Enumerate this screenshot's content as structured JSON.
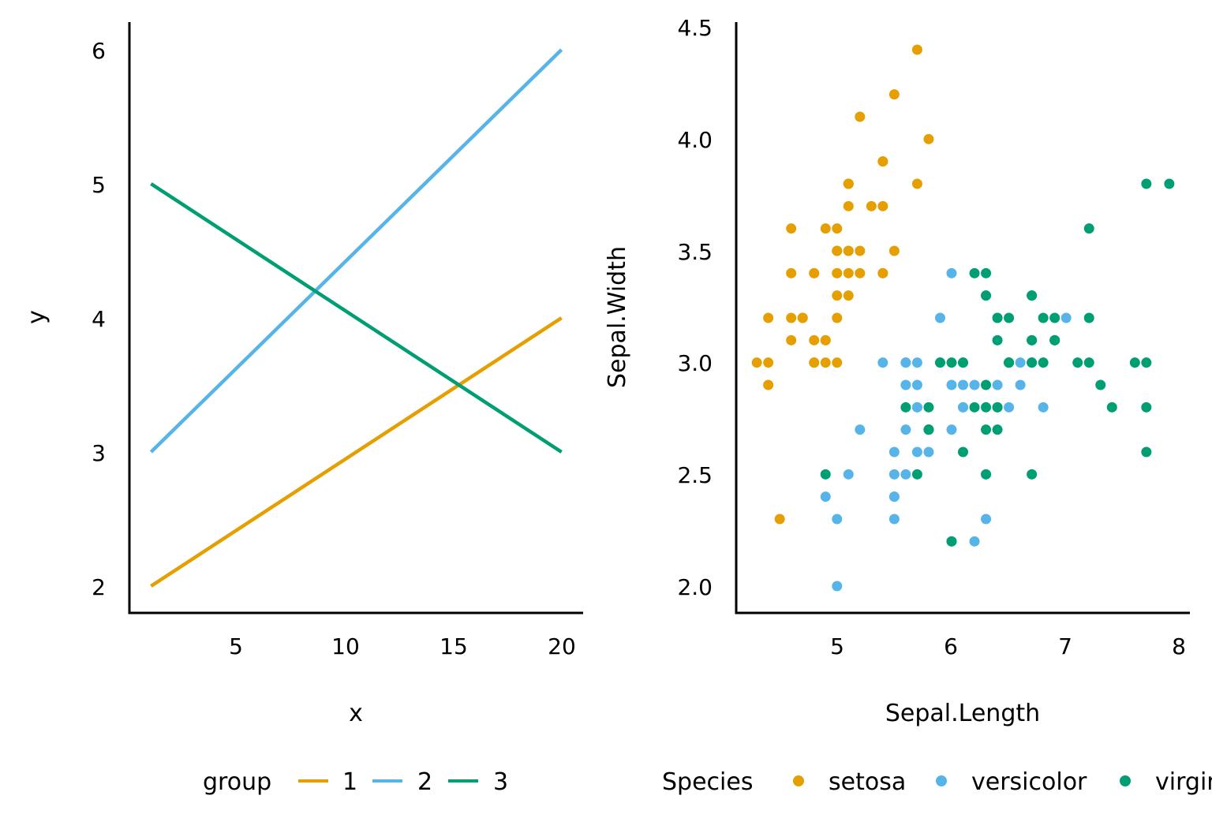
{
  "colors": {
    "g1": "#E69F00",
    "g2": "#56B4E9",
    "g3": "#009E73",
    "axis": "#000000"
  },
  "chart_data": [
    {
      "type": "line",
      "xlabel": "x",
      "ylabel": "y",
      "xlim": [
        0,
        21
      ],
      "ylim": [
        1.8,
        6.2
      ],
      "xticks": [
        "5",
        "10",
        "15",
        "20"
      ],
      "yticks": [
        "2",
        "3",
        "4",
        "5",
        "6"
      ],
      "grid": false,
      "legend_position": "bottom",
      "legend_title": "group",
      "series": [
        {
          "name": "1",
          "color": "#E69F00",
          "x": [
            1,
            20
          ],
          "y": [
            2,
            4
          ]
        },
        {
          "name": "2",
          "color": "#56B4E9",
          "x": [
            1,
            20
          ],
          "y": [
            3,
            6
          ]
        },
        {
          "name": "3",
          "color": "#009E73",
          "x": [
            1,
            20
          ],
          "y": [
            5,
            3
          ]
        }
      ]
    },
    {
      "type": "scatter",
      "xlabel": "Sepal.Length",
      "ylabel": "Sepal.Width",
      "xlim": [
        4.12,
        8.08
      ],
      "ylim": [
        1.88,
        4.52
      ],
      "xticks": [
        "5",
        "6",
        "7",
        "8"
      ],
      "yticks": [
        "2.0",
        "2.5",
        "3.0",
        "3.5",
        "4.0",
        "4.5"
      ],
      "grid": false,
      "legend_position": "bottom",
      "legend_title": "Species",
      "series": [
        {
          "name": "setosa",
          "color": "#E69F00",
          "points": [
            [
              5.1,
              3.5
            ],
            [
              4.9,
              3.0
            ],
            [
              4.7,
              3.2
            ],
            [
              4.6,
              3.1
            ],
            [
              5.0,
              3.6
            ],
            [
              5.4,
              3.9
            ],
            [
              4.6,
              3.4
            ],
            [
              5.0,
              3.4
            ],
            [
              4.4,
              2.9
            ],
            [
              4.9,
              3.1
            ],
            [
              5.4,
              3.7
            ],
            [
              4.8,
              3.4
            ],
            [
              4.8,
              3.0
            ],
            [
              4.3,
              3.0
            ],
            [
              5.8,
              4.0
            ],
            [
              5.7,
              4.4
            ],
            [
              5.4,
              3.9
            ],
            [
              5.1,
              3.5
            ],
            [
              5.7,
              3.8
            ],
            [
              5.1,
              3.8
            ],
            [
              5.4,
              3.4
            ],
            [
              5.1,
              3.7
            ],
            [
              4.6,
              3.6
            ],
            [
              5.1,
              3.3
            ],
            [
              4.8,
              3.4
            ],
            [
              5.0,
              3.0
            ],
            [
              5.0,
              3.4
            ],
            [
              5.2,
              3.5
            ],
            [
              5.2,
              3.4
            ],
            [
              4.7,
              3.2
            ],
            [
              4.8,
              3.1
            ],
            [
              5.4,
              3.4
            ],
            [
              5.2,
              4.1
            ],
            [
              5.5,
              4.2
            ],
            [
              4.9,
              3.1
            ],
            [
              5.0,
              3.2
            ],
            [
              5.5,
              3.5
            ],
            [
              4.9,
              3.6
            ],
            [
              4.4,
              3.0
            ],
            [
              5.1,
              3.4
            ],
            [
              5.0,
              3.5
            ],
            [
              4.5,
              2.3
            ],
            [
              4.4,
              3.2
            ],
            [
              5.0,
              3.5
            ],
            [
              5.1,
              3.8
            ],
            [
              4.8,
              3.0
            ],
            [
              5.1,
              3.8
            ],
            [
              4.6,
              3.2
            ],
            [
              5.3,
              3.7
            ],
            [
              5.0,
              3.3
            ]
          ]
        },
        {
          "name": "versicolor",
          "color": "#56B4E9",
          "points": [
            [
              7.0,
              3.2
            ],
            [
              6.4,
              3.2
            ],
            [
              6.9,
              3.1
            ],
            [
              5.5,
              2.3
            ],
            [
              6.5,
              2.8
            ],
            [
              5.7,
              2.8
            ],
            [
              6.3,
              3.3
            ],
            [
              4.9,
              2.4
            ],
            [
              6.6,
              2.9
            ],
            [
              5.2,
              2.7
            ],
            [
              5.0,
              2.0
            ],
            [
              5.9,
              3.0
            ],
            [
              6.0,
              2.2
            ],
            [
              6.1,
              2.9
            ],
            [
              5.6,
              2.9
            ],
            [
              6.7,
              3.1
            ],
            [
              5.6,
              3.0
            ],
            [
              5.8,
              2.7
            ],
            [
              6.2,
              2.2
            ],
            [
              5.6,
              2.5
            ],
            [
              5.9,
              3.2
            ],
            [
              6.1,
              2.8
            ],
            [
              6.3,
              2.5
            ],
            [
              6.1,
              2.8
            ],
            [
              6.4,
              2.9
            ],
            [
              6.6,
              3.0
            ],
            [
              6.8,
              2.8
            ],
            [
              6.7,
              3.0
            ],
            [
              6.0,
              2.9
            ],
            [
              5.7,
              2.6
            ],
            [
              5.5,
              2.4
            ],
            [
              5.5,
              2.4
            ],
            [
              5.8,
              2.7
            ],
            [
              6.0,
              2.7
            ],
            [
              5.4,
              3.0
            ],
            [
              6.0,
              3.4
            ],
            [
              6.7,
              3.1
            ],
            [
              6.3,
              2.3
            ],
            [
              5.6,
              3.0
            ],
            [
              5.5,
              2.5
            ],
            [
              5.5,
              2.6
            ],
            [
              6.1,
              3.0
            ],
            [
              5.8,
              2.6
            ],
            [
              5.0,
              2.3
            ],
            [
              5.6,
              2.7
            ],
            [
              5.7,
              3.0
            ],
            [
              5.7,
              2.9
            ],
            [
              6.2,
              2.9
            ],
            [
              5.1,
              2.5
            ],
            [
              5.7,
              2.8
            ]
          ]
        },
        {
          "name": "virginica",
          "color": "#009E73",
          "points": [
            [
              6.3,
              3.3
            ],
            [
              5.8,
              2.7
            ],
            [
              7.1,
              3.0
            ],
            [
              6.3,
              2.9
            ],
            [
              6.5,
              3.0
            ],
            [
              7.6,
              3.0
            ],
            [
              4.9,
              2.5
            ],
            [
              7.3,
              2.9
            ],
            [
              6.7,
              2.5
            ],
            [
              7.2,
              3.6
            ],
            [
              6.5,
              3.2
            ],
            [
              6.4,
              2.7
            ],
            [
              6.8,
              3.0
            ],
            [
              5.7,
              2.5
            ],
            [
              5.8,
              2.8
            ],
            [
              6.4,
              3.2
            ],
            [
              6.5,
              3.0
            ],
            [
              7.7,
              3.8
            ],
            [
              7.7,
              2.6
            ],
            [
              6.0,
              2.2
            ],
            [
              6.9,
              3.2
            ],
            [
              5.6,
              2.8
            ],
            [
              7.7,
              2.8
            ],
            [
              6.3,
              2.7
            ],
            [
              6.7,
              3.3
            ],
            [
              7.2,
              3.2
            ],
            [
              6.2,
              2.8
            ],
            [
              6.1,
              3.0
            ],
            [
              6.4,
              2.8
            ],
            [
              7.2,
              3.0
            ],
            [
              7.4,
              2.8
            ],
            [
              7.9,
              3.8
            ],
            [
              6.4,
              2.8
            ],
            [
              6.3,
              2.8
            ],
            [
              6.1,
              2.6
            ],
            [
              7.7,
              3.0
            ],
            [
              6.3,
              3.4
            ],
            [
              6.4,
              3.1
            ],
            [
              6.0,
              3.0
            ],
            [
              6.9,
              3.1
            ],
            [
              6.7,
              3.1
            ],
            [
              6.9,
              3.1
            ],
            [
              5.8,
              2.7
            ],
            [
              6.8,
              3.2
            ],
            [
              6.7,
              3.3
            ],
            [
              6.7,
              3.0
            ],
            [
              6.3,
              2.5
            ],
            [
              6.5,
              3.0
            ],
            [
              6.2,
              3.4
            ],
            [
              5.9,
              3.0
            ]
          ]
        }
      ]
    }
  ]
}
